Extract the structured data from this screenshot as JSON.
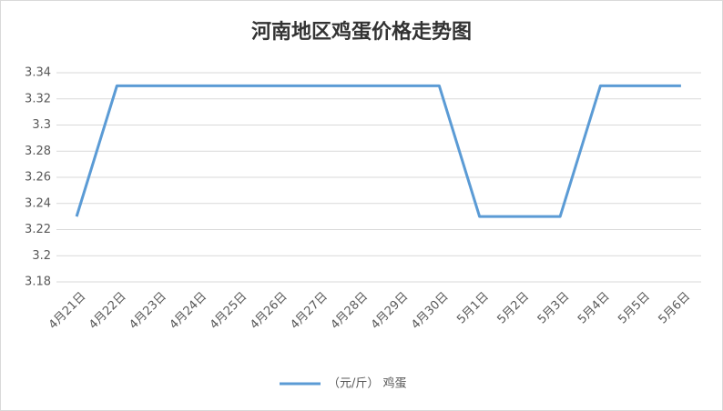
{
  "chart_data": {
    "type": "line",
    "title": "河南地区鸡蛋价格走势图",
    "categories": [
      "4月21日",
      "4月22日",
      "4月23日",
      "4月24日",
      "4月25日",
      "4月26日",
      "4月27日",
      "4月28日",
      "4月29日",
      "4月30日",
      "5月1日",
      "5月2日",
      "5月3日",
      "5月4日",
      "5月5日",
      "5月6日"
    ],
    "series": [
      {
        "name": "（元/斤） 鸡蛋",
        "color": "#5b9bd5",
        "values": [
          3.23,
          3.33,
          3.33,
          3.33,
          3.33,
          3.33,
          3.33,
          3.33,
          3.33,
          3.33,
          3.23,
          3.23,
          3.23,
          3.33,
          3.33,
          3.33
        ]
      }
    ],
    "ylim": [
      3.18,
      3.34
    ],
    "yticks": [
      3.18,
      3.2,
      3.22,
      3.24,
      3.26,
      3.28,
      3.3,
      3.32,
      3.34
    ],
    "grid": true,
    "legend": "bottom"
  }
}
